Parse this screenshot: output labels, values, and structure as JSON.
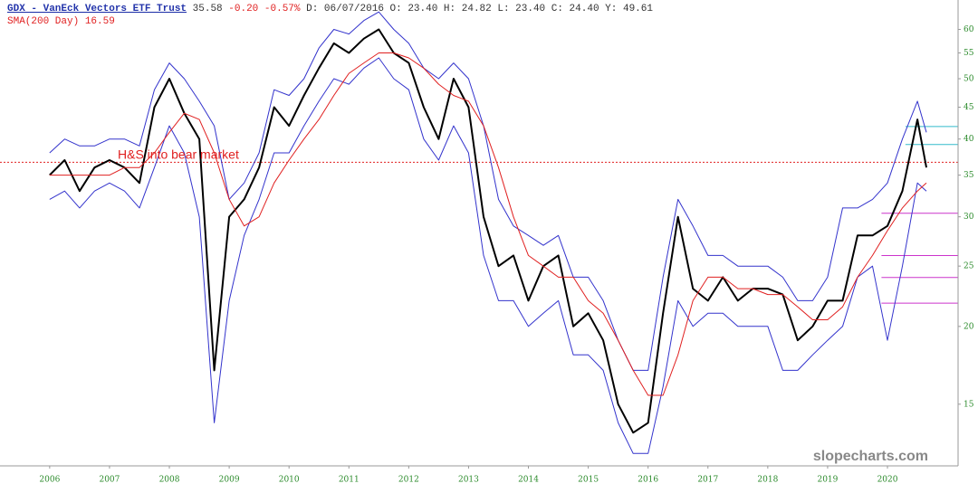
{
  "chart_data": {
    "type": "line",
    "header": {
      "symbol": "GDX - VanEck Vectors ETF Trust",
      "price": "35.58",
      "change": "-0.20 -0.57%",
      "details": "D: 06/07/2016 O: 23.40 H: 24.82 L: 23.40 C: 24.40 Y: 49.61",
      "sma_label": "SMA(200 Day) 16.59"
    },
    "annotation": "H&S into bear market",
    "watermark": "slopecharts.com",
    "log_scale": true,
    "xlim": [
      2005.17,
      2021.18
    ],
    "ylim": [
      11.94,
      66.9
    ],
    "xticks": [
      2006,
      2007,
      2008,
      2009,
      2010,
      2011,
      2012,
      2013,
      2014,
      2015,
      2016,
      2017,
      2018,
      2019,
      2020
    ],
    "yticks": [
      15,
      20,
      25,
      30,
      35,
      40,
      45,
      50,
      55,
      60
    ],
    "x": [
      2006.0,
      2006.25,
      2006.5,
      2006.75,
      2007.0,
      2007.25,
      2007.5,
      2007.75,
      2008.0,
      2008.25,
      2008.5,
      2008.75,
      2009.0,
      2009.25,
      2009.5,
      2009.75,
      2010.0,
      2010.25,
      2010.5,
      2010.75,
      2011.0,
      2011.25,
      2011.5,
      2011.75,
      2012.0,
      2012.25,
      2012.5,
      2012.75,
      2013.0,
      2013.25,
      2013.5,
      2013.75,
      2014.0,
      2014.25,
      2014.5,
      2014.75,
      2015.0,
      2015.25,
      2015.5,
      2015.75,
      2016.0,
      2016.25,
      2016.5,
      2016.75,
      2017.0,
      2017.25,
      2017.5,
      2017.75,
      2018.0,
      2018.25,
      2018.5,
      2018.75,
      2019.0,
      2019.25,
      2019.5,
      2019.75,
      2020.0,
      2020.25,
      2020.5,
      2020.65
    ],
    "series": [
      {
        "color": "#3333cc",
        "width": 1,
        "values": [
          38,
          40,
          39,
          39,
          40,
          40,
          39,
          48,
          53,
          50,
          46,
          42,
          32,
          34,
          38,
          48,
          47,
          50,
          56,
          60,
          59,
          62,
          64,
          60,
          57,
          52,
          50,
          53,
          50,
          42,
          32,
          29,
          28,
          27,
          28,
          24,
          24,
          22,
          19,
          17,
          17,
          24,
          32,
          29,
          26,
          26,
          25,
          25,
          25,
          24,
          22,
          22,
          24,
          31,
          31,
          32,
          34,
          40,
          46,
          41
        ]
      },
      {
        "color": "#3333cc",
        "width": 1,
        "values": [
          32,
          33,
          31,
          33,
          34,
          33,
          31,
          36,
          42,
          38,
          30,
          14,
          22,
          28,
          32,
          38,
          38,
          42,
          46,
          50,
          49,
          52,
          54,
          50,
          48,
          40,
          37,
          42,
          38,
          26,
          22,
          22,
          20,
          21,
          22,
          18,
          18,
          17,
          14,
          12.5,
          12.5,
          16,
          22,
          20,
          21,
          21,
          20,
          20,
          20,
          17,
          17,
          18,
          19,
          20,
          24,
          25,
          19,
          25,
          34,
          33
        ]
      },
      {
        "color": "#000000",
        "width": 2,
        "values": [
          35,
          37,
          33,
          36,
          37,
          36,
          34,
          45,
          50,
          44,
          40,
          17,
          30,
          32,
          36,
          45,
          42,
          47,
          52,
          57,
          55,
          58,
          60,
          55,
          53,
          45,
          40,
          50,
          45,
          30,
          25,
          26,
          22,
          25,
          26,
          20,
          21,
          19,
          15,
          13.5,
          14,
          21,
          30,
          23,
          22,
          24,
          22,
          23,
          23,
          22.5,
          19,
          20,
          22,
          22,
          28,
          28,
          29,
          33,
          43,
          36
        ]
      },
      {
        "color": "#e02020",
        "width": 1,
        "values": [
          35,
          35,
          35,
          35,
          35,
          36,
          36,
          38,
          41,
          44,
          43,
          38,
          32,
          29,
          30,
          34,
          37,
          40,
          43,
          47,
          51,
          53,
          55,
          55,
          54,
          52,
          49,
          47,
          46,
          42,
          36,
          30,
          26,
          25,
          24,
          24,
          22,
          21,
          19,
          17,
          15.5,
          15.5,
          18,
          22,
          24,
          24,
          23,
          23,
          22.5,
          22.5,
          21.5,
          20.5,
          20.5,
          21.5,
          24,
          26,
          28.5,
          31,
          33,
          34
        ]
      }
    ],
    "levels": [
      {
        "value": 36.7,
        "color": "#e02020",
        "dash": "2,2",
        "from": 2005.17
      },
      {
        "value": 41.9,
        "color": "#33bbcc",
        "dash": "",
        "from": 2020.3
      },
      {
        "value": 39.2,
        "color": "#33bbcc",
        "dash": "",
        "from": 2020.3
      },
      {
        "value": 30.4,
        "color": "#cc33cc",
        "dash": "",
        "from": 2019.9
      },
      {
        "value": 26.0,
        "color": "#cc33cc",
        "dash": "",
        "from": 2019.9
      },
      {
        "value": 23.97,
        "color": "#cc33cc",
        "dash": "",
        "from": 2019.9
      },
      {
        "value": 21.8,
        "color": "#cc33cc",
        "dash": "",
        "from": 2019.9
      }
    ]
  }
}
